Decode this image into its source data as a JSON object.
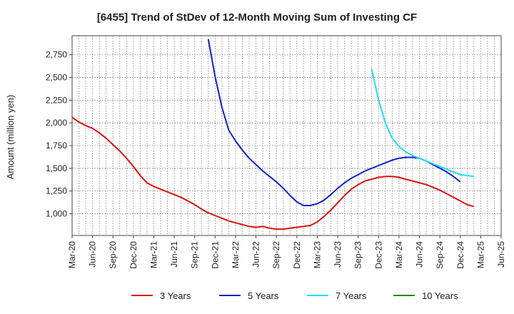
{
  "chart_data": {
    "type": "line",
    "title": "[6455]  Trend of StDev of 12-Month Moving Sum of Investing CF",
    "xlabel": "",
    "ylabel": "Amount (million yen)",
    "x_ticks": [
      "Mar-20",
      "Jun-20",
      "Sep-20",
      "Dec-20",
      "Mar-21",
      "Jun-21",
      "Sep-21",
      "Dec-21",
      "Mar-22",
      "Jun-22",
      "Sep-22",
      "Dec-22",
      "Mar-23",
      "Jun-23",
      "Sep-23",
      "Dec-23",
      "Mar-24",
      "Jun-24",
      "Sep-24",
      "Dec-24",
      "Mar-25",
      "Jun-25"
    ],
    "y_ticks": [
      1000,
      1250,
      1500,
      1750,
      2000,
      2250,
      2500,
      2750
    ],
    "y_tick_labels": [
      "1,000",
      "1,250",
      "1,500",
      "1,750",
      "2,000",
      "2,250",
      "2,500",
      "2,750"
    ],
    "ylim": [
      760,
      2960
    ],
    "grid": true,
    "legend_position": "bottom",
    "series": [
      {
        "name": "3 Years",
        "color": "#dd1111",
        "start": "Mar-20",
        "values": [
          2060,
          2010,
          1970,
          1940,
          1890,
          1830,
          1760,
          1690,
          1610,
          1520,
          1420,
          1340,
          1300,
          1270,
          1240,
          1210,
          1180,
          1140,
          1100,
          1050,
          1010,
          980,
          950,
          920,
          900,
          880,
          860,
          850,
          860,
          840,
          830,
          830,
          840,
          850,
          860,
          870,
          910,
          970,
          1040,
          1120,
          1200,
          1270,
          1320,
          1360,
          1380,
          1400,
          1410,
          1410,
          1400,
          1380,
          1360,
          1340,
          1320,
          1290,
          1260,
          1220,
          1180,
          1140,
          1100,
          1080
        ]
      },
      {
        "name": "5 Years",
        "color": "#1122cc",
        "start": "Nov-21",
        "values": [
          2920,
          2510,
          2170,
          1920,
          1800,
          1700,
          1610,
          1540,
          1470,
          1410,
          1350,
          1280,
          1200,
          1130,
          1090,
          1090,
          1110,
          1150,
          1210,
          1280,
          1340,
          1390,
          1430,
          1470,
          1500,
          1530,
          1560,
          1590,
          1610,
          1620,
          1620,
          1610,
          1580,
          1540,
          1500,
          1460,
          1410,
          1350
        ]
      },
      {
        "name": "7 Years",
        "color": "#22ddee",
        "start": "Nov-23",
        "values": [
          2590,
          2250,
          2000,
          1830,
          1740,
          1680,
          1640,
          1610,
          1580,
          1550,
          1520,
          1490,
          1460,
          1430,
          1420,
          1410
        ]
      },
      {
        "name": "10 Years",
        "color": "#228822",
        "start": "Mar-25",
        "values": []
      }
    ]
  }
}
